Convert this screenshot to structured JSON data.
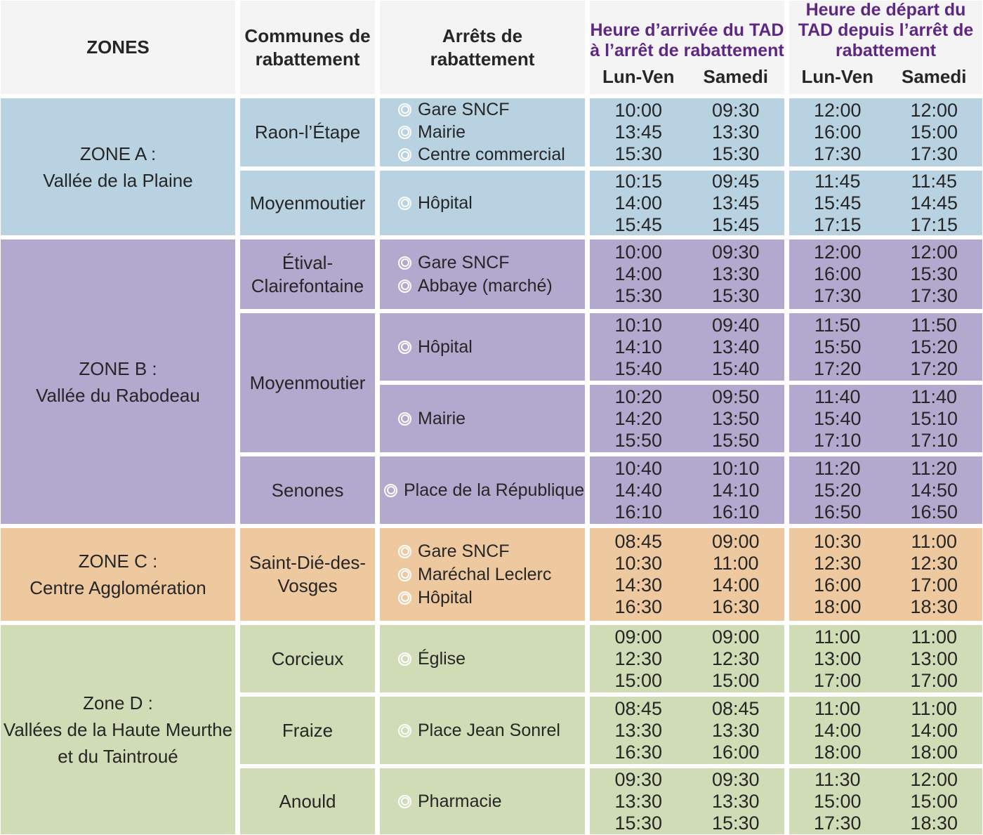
{
  "header": {
    "zones_label": "ZONES",
    "communes_label_lines": [
      "Communes de",
      "rabattement"
    ],
    "arrets_label_lines": [
      "Arrêts de",
      "rabattement"
    ],
    "arrivee_title_lines": [
      "Heure d’arrivée du TAD",
      "à l’arrêt de rabattement"
    ],
    "depart_title_lines": [
      "Heure de départ du",
      "TAD depuis l’arrêt de",
      "rabattement"
    ],
    "weekday_label": "Lun-Ven",
    "saturday_label": "Samedi"
  },
  "colors": {
    "zone_a": "#b8d2e2",
    "zone_b": "#b3a8cd",
    "zone_c": "#eec99f",
    "zone_d": "#cfdcb5",
    "header_bg": "#f4f4f4",
    "accent": "#5e2783",
    "text": "#262626"
  },
  "zones": [
    {
      "label_lines": [
        "ZONE A :",
        "Vallée de la Plaine"
      ],
      "rows": [
        {
          "commune_lines": [
            "Raon-l’Étape"
          ],
          "arrets": [
            "Gare SNCF",
            "Mairie",
            "Centre commercial"
          ],
          "arr_lv": [
            "10:00",
            "13:45",
            "15:30"
          ],
          "arr_sam": [
            "09:30",
            "13:30",
            "15:30"
          ],
          "dep_lv": [
            "12:00",
            "16:00",
            "17:30"
          ],
          "dep_sam": [
            "12:00",
            "15:00",
            "17:30"
          ]
        },
        {
          "commune_lines": [
            "Moyenmoutier"
          ],
          "arrets": [
            "Hôpital"
          ],
          "arr_lv": [
            "10:15",
            "14:00",
            "15:45"
          ],
          "arr_sam": [
            "09:45",
            "13:45",
            "15:45"
          ],
          "dep_lv": [
            "11:45",
            "15:45",
            "17:15"
          ],
          "dep_sam": [
            "11:45",
            "14:45",
            "17:15"
          ]
        }
      ]
    },
    {
      "label_lines": [
        "ZONE B :",
        "Vallée du Rabodeau"
      ],
      "rows": [
        {
          "commune_lines": [
            "Étival-",
            "Clairefontaine"
          ],
          "arrets": [
            "Gare SNCF",
            "Abbaye (marché)"
          ],
          "arr_lv": [
            "10:00",
            "14:00",
            "15:30"
          ],
          "arr_sam": [
            "09:30",
            "13:30",
            "15:30"
          ],
          "dep_lv": [
            "12:00",
            "16:00",
            "17:30"
          ],
          "dep_sam": [
            "12:00",
            "15:30",
            "17:30"
          ]
        },
        {
          "commune_lines": [
            "Moyenmoutier"
          ],
          "arrets": [
            "Hôpital"
          ],
          "arr_lv": [
            "10:10",
            "14:10",
            "15:40"
          ],
          "arr_sam": [
            "09:40",
            "13:40",
            "15:40"
          ],
          "dep_lv": [
            "11:50",
            "15:50",
            "17:20"
          ],
          "dep_sam": [
            "11:50",
            "15:20",
            "17:20"
          ]
        },
        {
          "arrets": [
            "Mairie"
          ],
          "arr_lv": [
            "10:20",
            "14:20",
            "15:50"
          ],
          "arr_sam": [
            "09:50",
            "13:50",
            "15:50"
          ],
          "dep_lv": [
            "11:40",
            "15:40",
            "17:10"
          ],
          "dep_sam": [
            "11:40",
            "15:10",
            "17:10"
          ]
        },
        {
          "commune_lines": [
            "Senones"
          ],
          "arrets": [
            "Place de la République"
          ],
          "arr_lv": [
            "10:40",
            "14:40",
            "16:10"
          ],
          "arr_sam": [
            "10:10",
            "14:10",
            "16:10"
          ],
          "dep_lv": [
            "11:20",
            "15:20",
            "16:50"
          ],
          "dep_sam": [
            "11:20",
            "14:50",
            "16:50"
          ]
        }
      ]
    },
    {
      "label_lines": [
        "ZONE C :",
        "Centre Agglomération"
      ],
      "rows": [
        {
          "commune_lines": [
            "Saint-Dié-des-",
            "Vosges"
          ],
          "arrets": [
            "Gare SNCF",
            "Maréchal Leclerc",
            "Hôpital"
          ],
          "arr_lv": [
            "08:45",
            "10:30",
            "14:30",
            "16:30"
          ],
          "arr_sam": [
            "09:00",
            "11:00",
            "14:00",
            "16:30"
          ],
          "dep_lv": [
            "10:30",
            "12:30",
            "16:00",
            "18:00"
          ],
          "dep_sam": [
            "11:00",
            "12:30",
            "17:00",
            "18:30"
          ]
        }
      ]
    },
    {
      "label_lines": [
        "Zone D :",
        "Vallées de la Haute Meurthe",
        "et du Taintroué"
      ],
      "rows": [
        {
          "commune_lines": [
            "Corcieux"
          ],
          "arrets": [
            "Église"
          ],
          "arr_lv": [
            "09:00",
            "12:30",
            "15:00"
          ],
          "arr_sam": [
            "09:00",
            "12:30",
            "15:00"
          ],
          "dep_lv": [
            "11:00",
            "13:00",
            "17:00"
          ],
          "dep_sam": [
            "11:00",
            "13:00",
            "17:00"
          ]
        },
        {
          "commune_lines": [
            "Fraize"
          ],
          "arrets": [
            "Place Jean Sonrel"
          ],
          "arr_lv": [
            "08:45",
            "13:30",
            "16:30"
          ],
          "arr_sam": [
            "08:45",
            "13:30",
            "16:00"
          ],
          "dep_lv": [
            "11:00",
            "14:00",
            "18:00"
          ],
          "dep_sam": [
            "11:00",
            "14:00",
            "18:00"
          ]
        },
        {
          "commune_lines": [
            "Anould"
          ],
          "arrets": [
            "Pharmacie"
          ],
          "arr_lv": [
            "09:30",
            "13:30",
            "15:30"
          ],
          "arr_sam": [
            "09:30",
            "13:30",
            "15:30"
          ],
          "dep_lv": [
            "11:30",
            "15:00",
            "17:30"
          ],
          "dep_sam": [
            "12:00",
            "15:00",
            "18:30"
          ]
        }
      ]
    }
  ]
}
